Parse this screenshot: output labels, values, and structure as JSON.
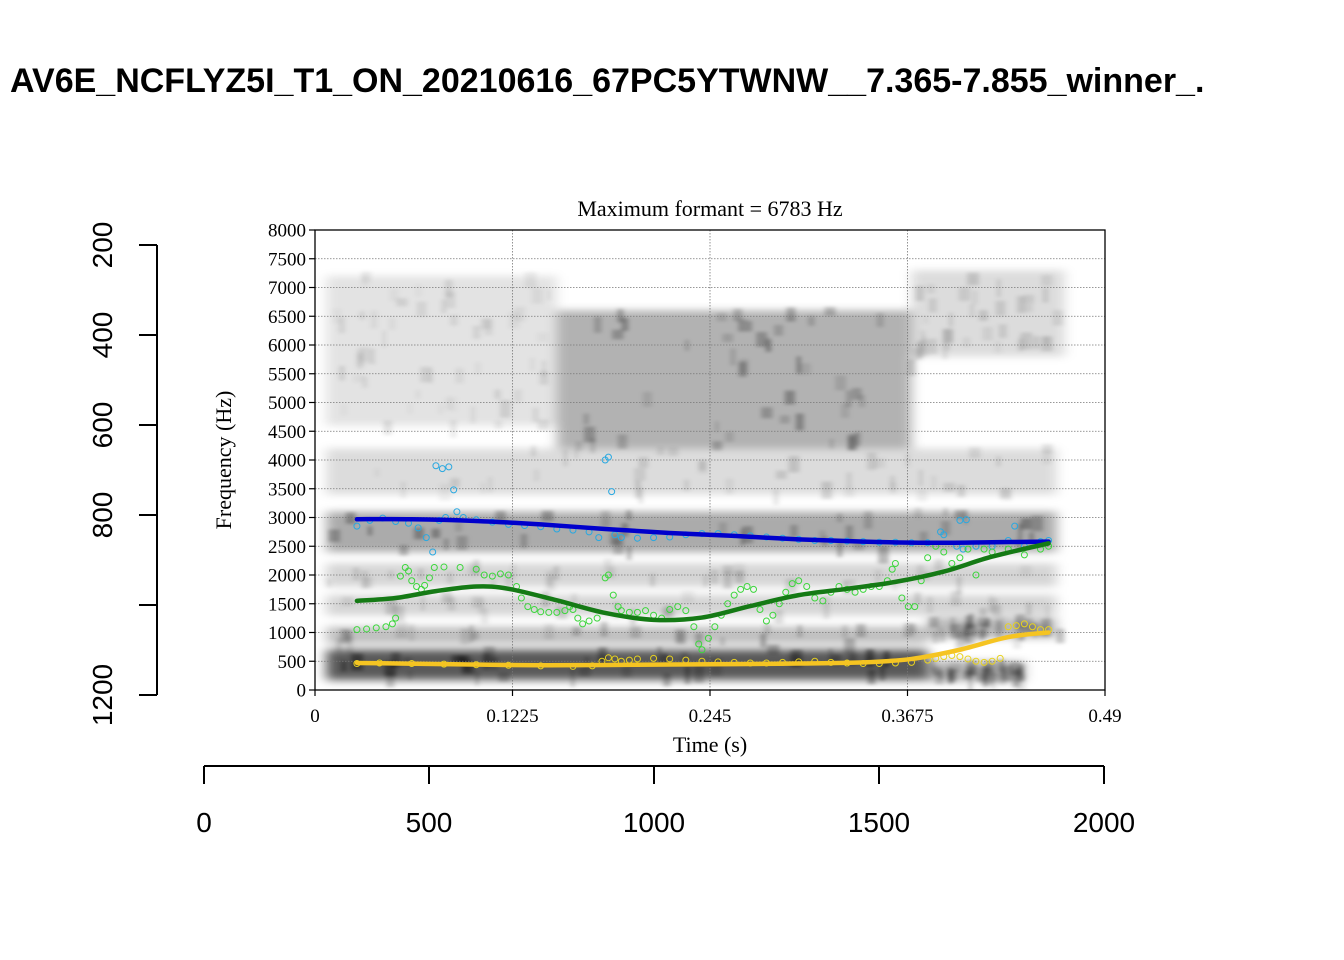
{
  "figure": {
    "title": "AV6E_NCFLYZ5I_T1_ON_20210616_67PC5YTWNW__7.365-7.855_winner_."
  },
  "chart_data": {
    "type": "scatter",
    "title": "Maximum formant = 6783 Hz",
    "xlabel": "Time (s)",
    "ylabel": "Frequency (Hz)",
    "xlim": [
      0,
      0.49
    ],
    "ylim": [
      0,
      8000
    ],
    "x_ticks": [
      "0",
      "0.1225",
      "0.245",
      "0.3675",
      "0.49"
    ],
    "y_ticks": [
      "0",
      "500",
      "1000",
      "1500",
      "2000",
      "2500",
      "3000",
      "3500",
      "4000",
      "4500",
      "5000",
      "5500",
      "6000",
      "6500",
      "7000",
      "7500",
      "8000"
    ],
    "grid": true,
    "background": "spectrogram",
    "outer_axes": {
      "left": {
        "ticks": [
          "200",
          "400",
          "600",
          "800",
          "1200"
        ],
        "range": [
          200,
          1200
        ],
        "direction": "top-to-bottom"
      },
      "bottom": {
        "ticks": [
          "0",
          "500",
          "1000",
          "1500",
          "2000"
        ],
        "range": [
          0,
          2000
        ]
      }
    },
    "series": [
      {
        "kind": "points",
        "formant": "F3",
        "color": "#29a8e0",
        "points": [
          [
            0.026,
            2850
          ],
          [
            0.034,
            2950
          ],
          [
            0.042,
            2990
          ],
          [
            0.05,
            2930
          ],
          [
            0.058,
            2900
          ],
          [
            0.064,
            2820
          ],
          [
            0.069,
            2650
          ],
          [
            0.073,
            2400
          ],
          [
            0.077,
            2950
          ],
          [
            0.081,
            3000
          ],
          [
            0.075,
            3900
          ],
          [
            0.079,
            3850
          ],
          [
            0.083,
            3880
          ],
          [
            0.086,
            3480
          ],
          [
            0.088,
            3100
          ],
          [
            0.092,
            3000
          ],
          [
            0.1,
            2960
          ],
          [
            0.11,
            2920
          ],
          [
            0.12,
            2880
          ],
          [
            0.13,
            2860
          ],
          [
            0.14,
            2840
          ],
          [
            0.15,
            2800
          ],
          [
            0.16,
            2780
          ],
          [
            0.17,
            2750
          ],
          [
            0.176,
            2650
          ],
          [
            0.18,
            4000
          ],
          [
            0.182,
            4050
          ],
          [
            0.184,
            3450
          ],
          [
            0.186,
            2700
          ],
          [
            0.19,
            2650
          ],
          [
            0.2,
            2640
          ],
          [
            0.21,
            2650
          ],
          [
            0.22,
            2660
          ],
          [
            0.23,
            2700
          ],
          [
            0.24,
            2720
          ],
          [
            0.25,
            2720
          ],
          [
            0.26,
            2700
          ],
          [
            0.27,
            2680
          ],
          [
            0.28,
            2660
          ],
          [
            0.29,
            2640
          ],
          [
            0.3,
            2620
          ],
          [
            0.31,
            2600
          ],
          [
            0.32,
            2600
          ],
          [
            0.33,
            2590
          ],
          [
            0.34,
            2580
          ],
          [
            0.35,
            2570
          ],
          [
            0.36,
            2570
          ],
          [
            0.37,
            2560
          ],
          [
            0.38,
            2560
          ],
          [
            0.388,
            2750
          ],
          [
            0.39,
            2700
          ],
          [
            0.398,
            2500
          ],
          [
            0.402,
            2450
          ],
          [
            0.4,
            2950
          ],
          [
            0.404,
            2960
          ],
          [
            0.41,
            2500
          ],
          [
            0.42,
            2500
          ],
          [
            0.43,
            2600
          ],
          [
            0.434,
            2850
          ],
          [
            0.44,
            2500
          ],
          [
            0.45,
            2580
          ],
          [
            0.455,
            2600
          ]
        ]
      },
      {
        "kind": "points",
        "formant": "F2",
        "color": "#3cd63c",
        "points": [
          [
            0.026,
            1050
          ],
          [
            0.032,
            1060
          ],
          [
            0.038,
            1080
          ],
          [
            0.044,
            1100
          ],
          [
            0.048,
            1150
          ],
          [
            0.05,
            1250
          ],
          [
            0.053,
            1980
          ],
          [
            0.056,
            2130
          ],
          [
            0.058,
            2070
          ],
          [
            0.06,
            1900
          ],
          [
            0.063,
            1800
          ],
          [
            0.066,
            1750
          ],
          [
            0.068,
            1820
          ],
          [
            0.071,
            1950
          ],
          [
            0.074,
            2130
          ],
          [
            0.08,
            2140
          ],
          [
            0.09,
            2130
          ],
          [
            0.1,
            2100
          ],
          [
            0.105,
            2000
          ],
          [
            0.11,
            1980
          ],
          [
            0.115,
            2020
          ],
          [
            0.12,
            2000
          ],
          [
            0.125,
            1800
          ],
          [
            0.128,
            1600
          ],
          [
            0.132,
            1450
          ],
          [
            0.136,
            1400
          ],
          [
            0.14,
            1360
          ],
          [
            0.145,
            1350
          ],
          [
            0.15,
            1350
          ],
          [
            0.155,
            1380
          ],
          [
            0.158,
            1450
          ],
          [
            0.16,
            1400
          ],
          [
            0.163,
            1250
          ],
          [
            0.166,
            1150
          ],
          [
            0.17,
            1200
          ],
          [
            0.175,
            1250
          ],
          [
            0.18,
            1950
          ],
          [
            0.182,
            2000
          ],
          [
            0.185,
            1650
          ],
          [
            0.188,
            1450
          ],
          [
            0.19,
            1380
          ],
          [
            0.195,
            1350
          ],
          [
            0.2,
            1350
          ],
          [
            0.205,
            1380
          ],
          [
            0.21,
            1300
          ],
          [
            0.215,
            1250
          ],
          [
            0.22,
            1400
          ],
          [
            0.225,
            1450
          ],
          [
            0.23,
            1380
          ],
          [
            0.235,
            1100
          ],
          [
            0.238,
            800
          ],
          [
            0.24,
            700
          ],
          [
            0.244,
            900
          ],
          [
            0.248,
            1100
          ],
          [
            0.252,
            1300
          ],
          [
            0.256,
            1500
          ],
          [
            0.26,
            1650
          ],
          [
            0.264,
            1750
          ],
          [
            0.268,
            1800
          ],
          [
            0.272,
            1750
          ],
          [
            0.276,
            1400
          ],
          [
            0.28,
            1200
          ],
          [
            0.284,
            1300
          ],
          [
            0.288,
            1500
          ],
          [
            0.292,
            1700
          ],
          [
            0.296,
            1850
          ],
          [
            0.3,
            1900
          ],
          [
            0.305,
            1800
          ],
          [
            0.31,
            1600
          ],
          [
            0.315,
            1550
          ],
          [
            0.32,
            1700
          ],
          [
            0.325,
            1800
          ],
          [
            0.33,
            1750
          ],
          [
            0.335,
            1700
          ],
          [
            0.34,
            1750
          ],
          [
            0.345,
            1800
          ],
          [
            0.35,
            1800
          ],
          [
            0.355,
            1900
          ],
          [
            0.358,
            2100
          ],
          [
            0.36,
            2200
          ],
          [
            0.364,
            1600
          ],
          [
            0.368,
            1450
          ],
          [
            0.372,
            1450
          ],
          [
            0.376,
            1900
          ],
          [
            0.38,
            2300
          ],
          [
            0.385,
            2500
          ],
          [
            0.39,
            2400
          ],
          [
            0.395,
            2200
          ],
          [
            0.4,
            2300
          ],
          [
            0.405,
            2450
          ],
          [
            0.41,
            2000
          ],
          [
            0.415,
            2450
          ],
          [
            0.42,
            2400
          ],
          [
            0.43,
            2450
          ],
          [
            0.44,
            2350
          ],
          [
            0.45,
            2450
          ],
          [
            0.455,
            2500
          ]
        ]
      },
      {
        "kind": "points",
        "formant": "F1",
        "color": "#e8d21e",
        "points": [
          [
            0.026,
            460
          ],
          [
            0.04,
            470
          ],
          [
            0.06,
            460
          ],
          [
            0.08,
            450
          ],
          [
            0.1,
            440
          ],
          [
            0.12,
            430
          ],
          [
            0.14,
            420
          ],
          [
            0.16,
            410
          ],
          [
            0.172,
            420
          ],
          [
            0.178,
            500
          ],
          [
            0.182,
            560
          ],
          [
            0.186,
            540
          ],
          [
            0.19,
            500
          ],
          [
            0.195,
            520
          ],
          [
            0.2,
            540
          ],
          [
            0.21,
            550
          ],
          [
            0.22,
            540
          ],
          [
            0.23,
            520
          ],
          [
            0.24,
            500
          ],
          [
            0.25,
            490
          ],
          [
            0.26,
            480
          ],
          [
            0.27,
            470
          ],
          [
            0.28,
            470
          ],
          [
            0.29,
            480
          ],
          [
            0.3,
            490
          ],
          [
            0.31,
            500
          ],
          [
            0.32,
            480
          ],
          [
            0.33,
            470
          ],
          [
            0.34,
            460
          ],
          [
            0.35,
            460
          ],
          [
            0.36,
            470
          ],
          [
            0.37,
            480
          ],
          [
            0.38,
            520
          ],
          [
            0.385,
            550
          ],
          [
            0.39,
            580
          ],
          [
            0.395,
            600
          ],
          [
            0.4,
            580
          ],
          [
            0.405,
            540
          ],
          [
            0.41,
            500
          ],
          [
            0.415,
            480
          ],
          [
            0.42,
            500
          ],
          [
            0.425,
            550
          ],
          [
            0.43,
            1100
          ],
          [
            0.435,
            1120
          ],
          [
            0.44,
            1150
          ],
          [
            0.445,
            1100
          ],
          [
            0.45,
            1050
          ],
          [
            0.455,
            1050
          ]
        ]
      },
      {
        "kind": "line",
        "formant": "F3 smooth",
        "color": "#0000cc",
        "points": [
          [
            0.026,
            2970
          ],
          [
            0.06,
            2970
          ],
          [
            0.1,
            2940
          ],
          [
            0.14,
            2880
          ],
          [
            0.18,
            2800
          ],
          [
            0.22,
            2730
          ],
          [
            0.26,
            2680
          ],
          [
            0.3,
            2620
          ],
          [
            0.34,
            2580
          ],
          [
            0.38,
            2560
          ],
          [
            0.42,
            2570
          ],
          [
            0.455,
            2580
          ]
        ]
      },
      {
        "kind": "line",
        "formant": "F2 smooth",
        "color": "#157a15",
        "points": [
          [
            0.026,
            1550
          ],
          [
            0.05,
            1600
          ],
          [
            0.075,
            1720
          ],
          [
            0.1,
            1800
          ],
          [
            0.12,
            1760
          ],
          [
            0.15,
            1560
          ],
          [
            0.18,
            1340
          ],
          [
            0.21,
            1220
          ],
          [
            0.24,
            1260
          ],
          [
            0.27,
            1460
          ],
          [
            0.3,
            1650
          ],
          [
            0.33,
            1760
          ],
          [
            0.36,
            1880
          ],
          [
            0.39,
            2060
          ],
          [
            0.42,
            2320
          ],
          [
            0.455,
            2550
          ]
        ]
      },
      {
        "kind": "line",
        "formant": "F1 smooth",
        "color": "#f5c422",
        "points": [
          [
            0.026,
            470
          ],
          [
            0.08,
            450
          ],
          [
            0.14,
            430
          ],
          [
            0.2,
            440
          ],
          [
            0.26,
            450
          ],
          [
            0.3,
            460
          ],
          [
            0.34,
            480
          ],
          [
            0.37,
            540
          ],
          [
            0.4,
            700
          ],
          [
            0.43,
            920
          ],
          [
            0.455,
            1000
          ]
        ]
      }
    ]
  }
}
